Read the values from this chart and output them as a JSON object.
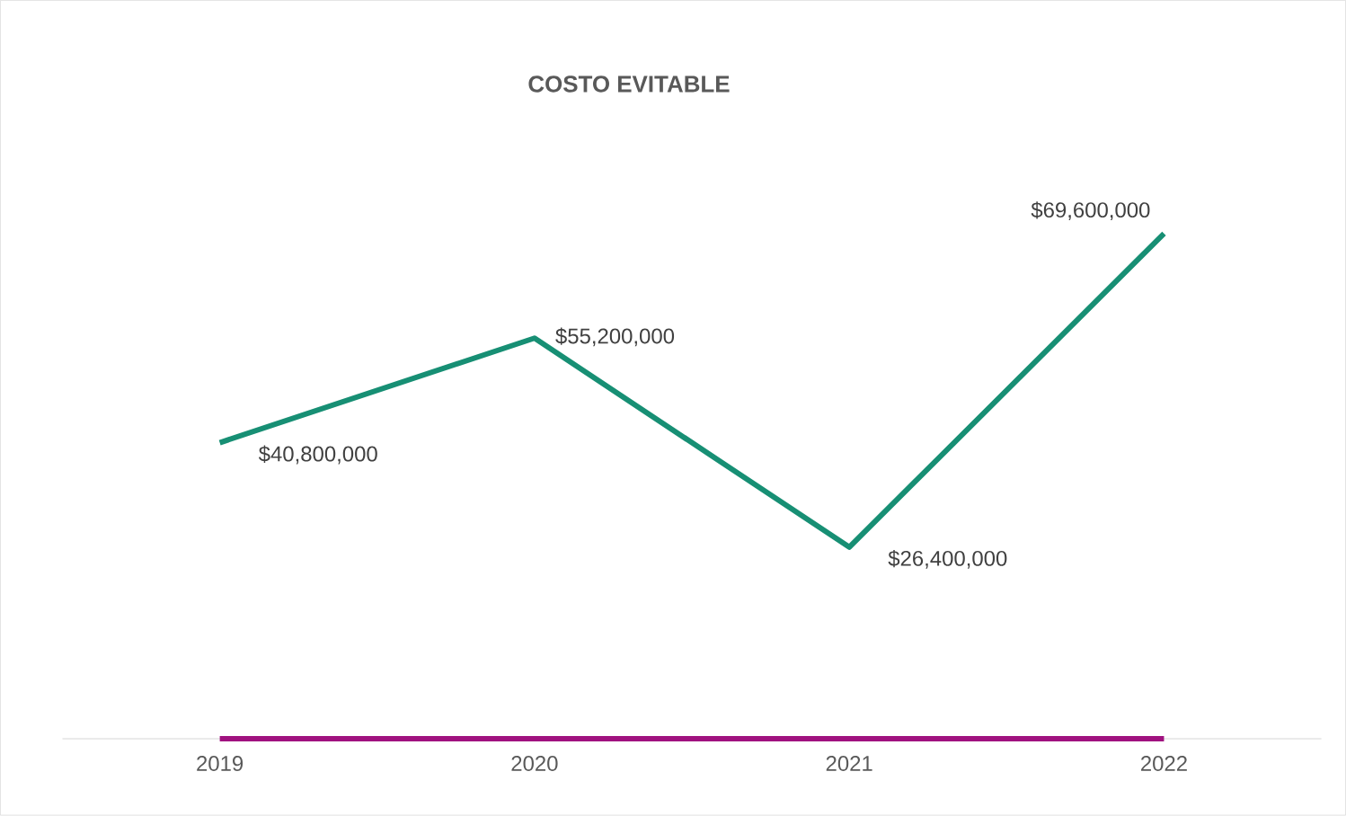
{
  "chart_data": {
    "type": "line",
    "title": "COSTO EVITABLE",
    "categories": [
      "2019",
      "2020",
      "2021",
      "2022"
    ],
    "series": [
      {
        "color": "#178f74",
        "values": [
          40800000,
          55200000,
          26400000,
          69600000
        ],
        "value_labels": [
          "$40,800,000",
          "$55,200,000",
          "$26,400,000",
          "$69,600,000"
        ]
      },
      {
        "color": "#a0127f",
        "values": [
          0,
          0,
          0,
          0
        ]
      }
    ],
    "marker": "none",
    "line_style": "solid",
    "grid": false,
    "tick_labels": "x"
  }
}
